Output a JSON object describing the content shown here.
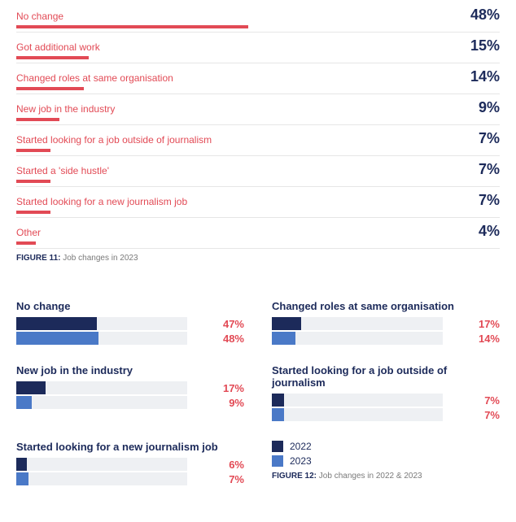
{
  "fig11": {
    "type": "bar",
    "label_color": "#e24a55",
    "value_color": "#1c2a5a",
    "bar_color": "#e24a55",
    "baseline_color": "#e6e6e6",
    "track_full_pct": 100,
    "caption_prefix": "FIGURE 11:",
    "caption": "Job changes in 2023",
    "items": [
      {
        "label": "No change",
        "value": "48%",
        "pct": 48
      },
      {
        "label": "Got additional work",
        "value": "15%",
        "pct": 15
      },
      {
        "label": "Changed roles at same organisation",
        "value": "14%",
        "pct": 14
      },
      {
        "label": "New job in the industry",
        "value": "9%",
        "pct": 9
      },
      {
        "label": "Started looking for a job outside of journalism",
        "value": "7%",
        "pct": 7
      },
      {
        "label": "Started a 'side hustle'",
        "value": "7%",
        "pct": 7
      },
      {
        "label": "Started looking for a new journalism job",
        "value": "7%",
        "pct": 7
      },
      {
        "label": "Other",
        "value": "4%",
        "pct": 4
      }
    ]
  },
  "fig12": {
    "type": "grouped-bar",
    "title_color": "#1c2a5a",
    "value_color": "#e24a55",
    "track_bg": "#eef0f3",
    "color_2022": "#1c2a5a",
    "color_2023": "#4a79c7",
    "track_full_pct": 100,
    "caption_prefix": "FIGURE 12:",
    "caption": "Job changes in 2022 & 2023",
    "legend": [
      {
        "label": "2022",
        "color": "#1c2a5a"
      },
      {
        "label": "2023",
        "color": "#4a79c7"
      }
    ],
    "blocks": [
      {
        "title": "No change",
        "y2022": {
          "value": "47%",
          "pct": 47
        },
        "y2023": {
          "value": "48%",
          "pct": 48
        }
      },
      {
        "title": "Changed roles at same organisation",
        "y2022": {
          "value": "17%",
          "pct": 17
        },
        "y2023": {
          "value": "14%",
          "pct": 14
        }
      },
      {
        "title": "New job in the industry",
        "y2022": {
          "value": "17%",
          "pct": 17
        },
        "y2023": {
          "value": "9%",
          "pct": 9
        }
      },
      {
        "title": "Started looking for a job outside of journalism",
        "y2022": {
          "value": "7%",
          "pct": 7
        },
        "y2023": {
          "value": "7%",
          "pct": 7
        }
      },
      {
        "title": "Started looking for a new journalism job",
        "y2022": {
          "value": "6%",
          "pct": 6
        },
        "y2023": {
          "value": "7%",
          "pct": 7
        }
      }
    ]
  }
}
